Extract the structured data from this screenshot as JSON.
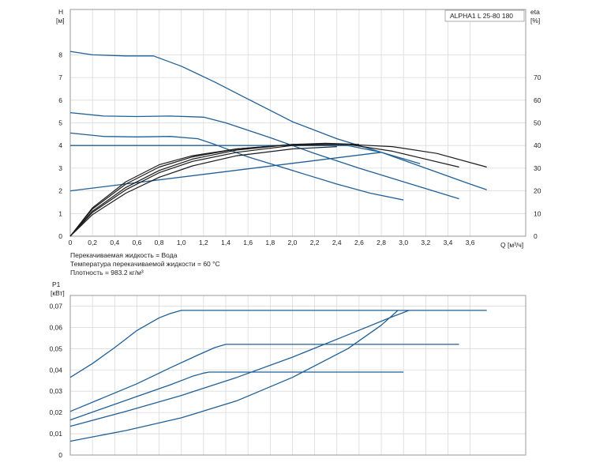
{
  "chart_data": [
    {
      "type": "line",
      "label_box": "ALPHA1 L 25-80  180",
      "ylabel_left": "H",
      "ylabel_left_unit": "[м]",
      "ylabel_right": "eta",
      "ylabel_right_unit": "[%]",
      "xlabel": "Q [м³/ч]",
      "xlim": [
        0,
        4.1
      ],
      "ylim": [
        0,
        10
      ],
      "ylim_right": [
        0,
        100
      ],
      "x_ticks": [
        "0",
        "0,2",
        "0,4",
        "0,6",
        "0,8",
        "1,0",
        "1,2",
        "1,4",
        "1,6",
        "1,8",
        "2,0",
        "2,2",
        "2,4",
        "2,6",
        "2,8",
        "3,0",
        "3,2",
        "3,4",
        "3,6"
      ],
      "y_ticks": [
        "0",
        "1",
        "2",
        "3",
        "4",
        "5",
        "6",
        "7",
        "8"
      ],
      "y_ticks_right": [
        "0",
        "10",
        "20",
        "30",
        "40",
        "50",
        "60",
        "70"
      ],
      "grid": true,
      "notes": [
        "Перекачиваемая жидкость = Вода",
        "Температура перекачиваемой жидкости = 60 °C",
        "Плотность = 983.2 кг/м³"
      ],
      "series_color_head": "#1f5f96",
      "series_color_eta": "#1a1a1a",
      "head_series": [
        {
          "x": [
            0,
            0.2,
            0.5,
            0.75,
            1.0,
            1.3,
            1.6,
            2.0,
            2.4,
            2.8,
            3.2,
            3.6,
            3.75
          ],
          "y": [
            8.15,
            8.0,
            7.95,
            7.95,
            7.5,
            6.8,
            6.05,
            5.05,
            4.3,
            3.7,
            3.0,
            2.3,
            2.05
          ]
        },
        {
          "x": [
            0,
            0.3,
            0.6,
            0.9,
            1.2,
            1.4,
            1.8,
            2.2,
            2.6,
            3.0,
            3.5
          ],
          "y": [
            5.45,
            5.3,
            5.28,
            5.3,
            5.25,
            5.0,
            4.35,
            3.65,
            3.0,
            2.4,
            1.65
          ]
        },
        {
          "x": [
            0,
            0.3,
            0.6,
            0.9,
            1.15,
            1.3,
            1.6,
            2.0,
            2.4,
            2.7,
            3.0
          ],
          "y": [
            4.55,
            4.4,
            4.38,
            4.4,
            4.3,
            4.05,
            3.5,
            2.9,
            2.3,
            1.9,
            1.6
          ]
        },
        {
          "x": [
            0,
            0.5,
            1.0,
            1.5,
            2.0,
            2.5,
            2.8,
            3.15
          ],
          "y": [
            4.0,
            4.0,
            4.0,
            4.0,
            4.0,
            4.0,
            3.7,
            3.2
          ]
        },
        {
          "x": [
            0,
            2.8
          ],
          "y": [
            2.0,
            3.7
          ]
        }
      ],
      "eta_series": [
        {
          "x": [
            0,
            0.2,
            0.5,
            0.8,
            1.1,
            1.5,
            2.0,
            2.5,
            2.9,
            3.3,
            3.75
          ],
          "y": [
            0,
            12.5,
            24,
            31.5,
            35.5,
            38.5,
            40.5,
            40.5,
            39.5,
            36.5,
            30.5
          ]
        },
        {
          "x": [
            0,
            0.2,
            0.5,
            0.8,
            1.1,
            1.5,
            2.0,
            2.5,
            2.9,
            3.2,
            3.5
          ],
          "y": [
            0,
            12,
            23,
            30.5,
            35,
            38.5,
            40.5,
            40.5,
            37.5,
            34,
            30.5
          ]
        },
        {
          "x": [
            0,
            0.2,
            0.5,
            0.8,
            1.1,
            1.5,
            2.0,
            2.3,
            2.6
          ],
          "y": [
            0,
            11,
            21.5,
            29,
            34,
            38,
            40.5,
            41,
            40.5
          ]
        },
        {
          "x": [
            0,
            0.2,
            0.5,
            0.8,
            1.1,
            1.5,
            2.0,
            2.4
          ],
          "y": [
            0,
            10.5,
            20.5,
            28,
            33,
            37,
            40,
            40.5
          ]
        },
        {
          "x": [
            0,
            0.2,
            0.5,
            0.8,
            1.1,
            1.5,
            2.0,
            2.4
          ],
          "y": [
            0,
            9.5,
            19,
            26,
            31,
            35.5,
            38.5,
            39.5
          ]
        }
      ]
    },
    {
      "type": "line",
      "ylabel": "P1",
      "ylabel_unit": "[кВт]",
      "xlim": [
        0,
        4.1
      ],
      "ylim": [
        0,
        0.075
      ],
      "y_ticks": [
        "0",
        "0,01",
        "0,02",
        "0,03",
        "0,04",
        "0,05",
        "0,06",
        "0,07"
      ],
      "grid": true,
      "series_color": "#1f5f96",
      "series": [
        {
          "x": [
            0,
            0.2,
            0.4,
            0.6,
            0.8,
            0.9,
            1.0,
            3.75
          ],
          "y": [
            0.0365,
            0.043,
            0.0505,
            0.0585,
            0.0645,
            0.0665,
            0.068,
            0.068
          ]
        },
        {
          "x": [
            0,
            0.3,
            0.6,
            0.9,
            1.15,
            1.3,
            1.4,
            3.5
          ],
          "y": [
            0.0205,
            0.027,
            0.0335,
            0.041,
            0.047,
            0.0505,
            0.052,
            0.052
          ]
        },
        {
          "x": [
            0,
            0.3,
            0.6,
            0.9,
            1.1,
            1.2,
            1.25,
            3.0
          ],
          "y": [
            0.0165,
            0.022,
            0.0275,
            0.033,
            0.037,
            0.0385,
            0.039,
            0.039
          ]
        },
        {
          "x": [
            0,
            0.5,
            1.0,
            1.5,
            2.0,
            2.5,
            2.9,
            3.05
          ],
          "y": [
            0.0135,
            0.0205,
            0.028,
            0.0365,
            0.046,
            0.0565,
            0.065,
            0.068
          ]
        },
        {
          "x": [
            0,
            0.5,
            1.0,
            1.5,
            2.0,
            2.5,
            2.8,
            2.95
          ],
          "y": [
            0.0065,
            0.0115,
            0.0175,
            0.0255,
            0.0365,
            0.05,
            0.061,
            0.068
          ]
        }
      ]
    }
  ]
}
